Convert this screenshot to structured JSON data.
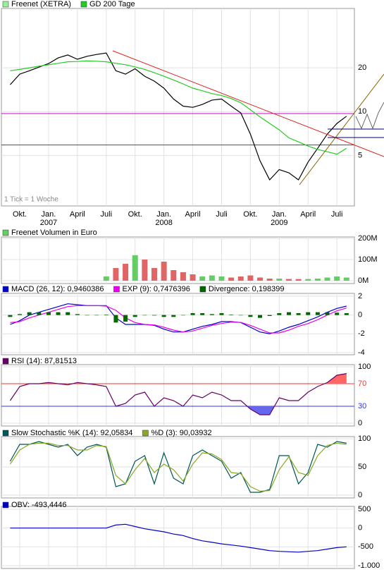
{
  "chart_data": [
    {
      "type": "line",
      "log_scale": true,
      "grid": true,
      "annotation": "1 Tick = 1 Woche",
      "categories": [
        null,
        "Okt.",
        null,
        null,
        "Jan.\n2007",
        null,
        null,
        "April",
        null,
        null,
        "Juli",
        null,
        null,
        "Okt.",
        null,
        null,
        "Jan.\n2008",
        null,
        null,
        "April",
        null,
        null,
        "Juli",
        null,
        null,
        "Okt.",
        null,
        null,
        "Jan.\n2009",
        null,
        null,
        "April",
        null,
        null,
        "Juli",
        null
      ],
      "series": [
        {
          "name": "Freenet (XETRA)",
          "color": "#000000",
          "legend_color": "#99ee99",
          "values": [
            15.3,
            18.1,
            19.1,
            20.2,
            21.4,
            23.4,
            24.5,
            22.9,
            24,
            24.7,
            25.3,
            19.1,
            18.1,
            19.7,
            17.5,
            16.2,
            14.5,
            12.2,
            10.9,
            10.7,
            11.2,
            12,
            12.2,
            10.9,
            9.8,
            7,
            4.6,
            3.4,
            4,
            3.8,
            3.4,
            4.5,
            5.6,
            7,
            8.3,
            9.3
          ]
        },
        {
          "name": "GD 200 Tage",
          "color": "#22cc22",
          "legend_color": "#22cc22",
          "values": [
            19.1,
            19.5,
            20,
            20.5,
            21,
            21.5,
            22,
            22.1,
            22.3,
            22.2,
            22,
            21.5,
            21,
            20.3,
            19.5,
            18.5,
            17.5,
            16.5,
            15.5,
            14.5,
            13.9,
            13.3,
            12.9,
            12.3,
            11.5,
            10.3,
            9.2,
            8.3,
            7.5,
            6.6,
            6.2,
            5.8,
            5.5,
            5.3,
            5.1,
            5.6
          ]
        }
      ],
      "levels": [
        {
          "value": 9.7,
          "color": "#cc00cc"
        },
        {
          "value": 5.9,
          "color": "#cc00cc"
        }
      ],
      "ylim": [
        2.3,
        50
      ],
      "yticks": [
        5,
        10,
        20
      ]
    },
    {
      "type": "bar",
      "grid": true,
      "series": [
        {
          "name": "Freenet Volumen in Euro",
          "color": "#66cc66",
          "down_color": "#e06666",
          "values": [
            null,
            null,
            null,
            null,
            null,
            null,
            null,
            null,
            null,
            null,
            20,
            60,
            80,
            120,
            100,
            60,
            90,
            50,
            40,
            30,
            20,
            25,
            20,
            15,
            20,
            25,
            15,
            10,
            10,
            8,
            8,
            8,
            10,
            15,
            20,
            15
          ]
        }
      ],
      "ylim": [
        0,
        200
      ],
      "yticks": [
        {
          "value": 0,
          "label": "0M"
        },
        {
          "value": 100,
          "label": "100M"
        },
        {
          "value": 200,
          "label": "200M"
        }
      ]
    },
    {
      "type": "line",
      "grid": true,
      "series": [
        {
          "name": "MACD (26, 12): 0,9460386",
          "color": "#0000cc",
          "values": [
            -1,
            -0.6,
            0,
            0.3,
            0.6,
            0.9,
            1.2,
            1.1,
            1.0,
            1.0,
            1.0,
            -0.3,
            -1.0,
            -1.0,
            -1.0,
            -1.1,
            -1.5,
            -1.8,
            -1.8,
            -1.5,
            -1.2,
            -1.0,
            -0.7,
            -0.7,
            -0.8,
            -1.3,
            -1.8,
            -2.0,
            -1.7,
            -1.3,
            -1.0,
            -0.6,
            -0.2,
            0.3,
            0.7,
            0.95
          ]
        },
        {
          "name": "EXP (9): 0,7476396",
          "color": "#ee00ee",
          "values": [
            -0.8,
            -0.7,
            -0.3,
            0,
            0.3,
            0.6,
            0.9,
            1.0,
            1.0,
            1.0,
            0.95,
            0.5,
            -0.3,
            -0.8,
            -1.0,
            -1.05,
            -1.3,
            -1.6,
            -1.8,
            -1.7,
            -1.4,
            -1.1,
            -0.9,
            -0.75,
            -0.78,
            -1.1,
            -1.5,
            -1.9,
            -1.9,
            -1.6,
            -1.2,
            -0.9,
            -0.5,
            0,
            0.45,
            0.75
          ]
        },
        {
          "name": "Divergence: 0,198399",
          "color": "#006600",
          "style": "bar",
          "values": [
            -0.2,
            0.1,
            0.3,
            0.3,
            0.3,
            0.3,
            0.3,
            0.1,
            0,
            0,
            0.05,
            -0.8,
            -0.7,
            -0.2,
            0,
            -0.05,
            -0.2,
            -0.2,
            0,
            0.2,
            0.2,
            0.1,
            0.2,
            0.05,
            -0.02,
            -0.2,
            -0.3,
            -0.1,
            0.2,
            0.3,
            0.2,
            0.3,
            0.3,
            0.3,
            0.25,
            0.2
          ]
        }
      ],
      "ylim": [
        -4,
        2
      ],
      "yticks": [
        -4,
        -2,
        0,
        2
      ]
    },
    {
      "type": "line",
      "grid": true,
      "series": [
        {
          "name": "RSI (14): 87,81513",
          "color": "#660066",
          "values": [
            40,
            65,
            70,
            70,
            72,
            70,
            68,
            72,
            70,
            68,
            65,
            30,
            35,
            50,
            55,
            30,
            45,
            40,
            30,
            50,
            45,
            55,
            50,
            40,
            40,
            25,
            15,
            15,
            45,
            40,
            40,
            55,
            65,
            72,
            85,
            88
          ]
        }
      ],
      "levels": [
        {
          "value": 70,
          "color": "#ee3333",
          "fill": "above",
          "fill_color": "#ff6666"
        },
        {
          "value": 30,
          "color": "#3333ee",
          "fill": "below",
          "fill_color": "#6666ee"
        }
      ],
      "ylim": [
        0,
        100
      ],
      "yticks": [
        0,
        100
      ]
    },
    {
      "type": "line",
      "grid": true,
      "series": [
        {
          "name": "Slow Stochastic %K (14): 92,05834",
          "color": "#005555",
          "values": [
            60,
            90,
            90,
            95,
            90,
            85,
            90,
            70,
            85,
            90,
            85,
            15,
            20,
            60,
            70,
            20,
            75,
            30,
            20,
            70,
            80,
            70,
            60,
            30,
            40,
            5,
            5,
            10,
            70,
            70,
            20,
            40,
            90,
            85,
            95,
            92
          ]
        },
        {
          "name": "%D (3): 90,03932",
          "color": "#88aa22",
          "values": [
            55,
            80,
            90,
            92,
            92,
            88,
            88,
            80,
            80,
            88,
            86,
            35,
            20,
            45,
            65,
            40,
            55,
            45,
            25,
            55,
            75,
            73,
            63,
            40,
            38,
            15,
            7,
            8,
            45,
            68,
            40,
            35,
            70,
            88,
            92,
            90
          ]
        }
      ],
      "ylim": [
        0,
        100
      ],
      "yticks": [
        0,
        50,
        100
      ]
    },
    {
      "type": "line",
      "grid": true,
      "series": [
        {
          "name": "OBV: -493,4446",
          "color": "#0000cc",
          "values": [
            0,
            0,
            0,
            0,
            0,
            0,
            0,
            0,
            0,
            0,
            0,
            80,
            100,
            40,
            -20,
            -60,
            -100,
            -160,
            -200,
            -280,
            -340,
            -380,
            -420,
            -450,
            -480,
            -520,
            -560,
            -600,
            -620,
            -630,
            -640,
            -620,
            -600,
            -560,
            -520,
            -500
          ]
        }
      ],
      "ylim": [
        -1000,
        500
      ],
      "yticks": [
        {
          "value": -1000,
          "label": "-1.000"
        },
        -500,
        0,
        500
      ]
    }
  ]
}
